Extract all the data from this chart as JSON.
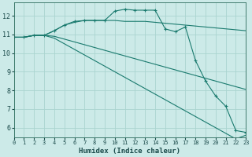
{
  "xlabel": "Humidex (Indice chaleur)",
  "xlim": [
    0,
    23
  ],
  "ylim": [
    5.5,
    12.7
  ],
  "yticks": [
    6,
    7,
    8,
    9,
    10,
    11,
    12
  ],
  "xticks": [
    0,
    1,
    2,
    3,
    4,
    5,
    6,
    7,
    8,
    9,
    10,
    11,
    12,
    13,
    14,
    15,
    16,
    17,
    18,
    19,
    20,
    21,
    22,
    23
  ],
  "bg_color": "#cceae8",
  "grid_color": "#aad4d0",
  "line_color": "#1a7a6e",
  "lines": [
    {
      "x": [
        0,
        1,
        2,
        3,
        4,
        5,
        6,
        7,
        8,
        9,
        10,
        11,
        12,
        13,
        14,
        15,
        16,
        17,
        18,
        19,
        20,
        21,
        22,
        23
      ],
      "y": [
        10.85,
        10.85,
        10.95,
        10.95,
        11.2,
        11.5,
        11.7,
        11.75,
        11.75,
        11.75,
        12.25,
        12.35,
        12.3,
        12.3,
        12.3,
        11.3,
        11.15,
        11.4,
        9.6,
        8.5,
        7.7,
        7.15,
        5.85,
        5.75
      ],
      "marker": true
    },
    {
      "x": [
        0,
        1,
        2,
        3,
        4,
        5,
        6,
        7,
        8,
        9,
        10,
        11,
        12,
        13,
        14,
        15,
        16,
        17,
        18,
        19,
        20,
        21,
        22,
        23
      ],
      "y": [
        10.85,
        10.85,
        10.95,
        10.95,
        11.2,
        11.5,
        11.65,
        11.75,
        11.75,
        11.75,
        11.75,
        11.7,
        11.7,
        11.7,
        11.65,
        11.6,
        11.55,
        11.5,
        11.45,
        11.4,
        11.35,
        11.3,
        11.25,
        11.2
      ],
      "marker": false
    },
    {
      "x": [
        0,
        1,
        2,
        3,
        4,
        5,
        6,
        7,
        8,
        9,
        10,
        11,
        12,
        13,
        14,
        15,
        16,
        17,
        18,
        19,
        20,
        21,
        22,
        23
      ],
      "y": [
        10.85,
        10.85,
        10.95,
        10.95,
        10.9,
        10.75,
        10.6,
        10.45,
        10.3,
        10.15,
        10.0,
        9.85,
        9.7,
        9.55,
        9.4,
        9.25,
        9.1,
        8.95,
        8.8,
        8.65,
        8.5,
        8.35,
        8.2,
        8.05
      ],
      "marker": false
    },
    {
      "x": [
        0,
        1,
        2,
        3,
        4,
        5,
        6,
        7,
        8,
        9,
        10,
        11,
        12,
        13,
        14,
        15,
        16,
        17,
        18,
        19,
        20,
        21,
        22,
        23
      ],
      "y": [
        10.85,
        10.85,
        10.95,
        10.95,
        10.8,
        10.5,
        10.2,
        9.9,
        9.6,
        9.3,
        9.0,
        8.7,
        8.4,
        8.1,
        7.8,
        7.5,
        7.2,
        6.9,
        6.6,
        6.3,
        6.0,
        5.7,
        5.4,
        5.6
      ],
      "marker": false
    }
  ]
}
